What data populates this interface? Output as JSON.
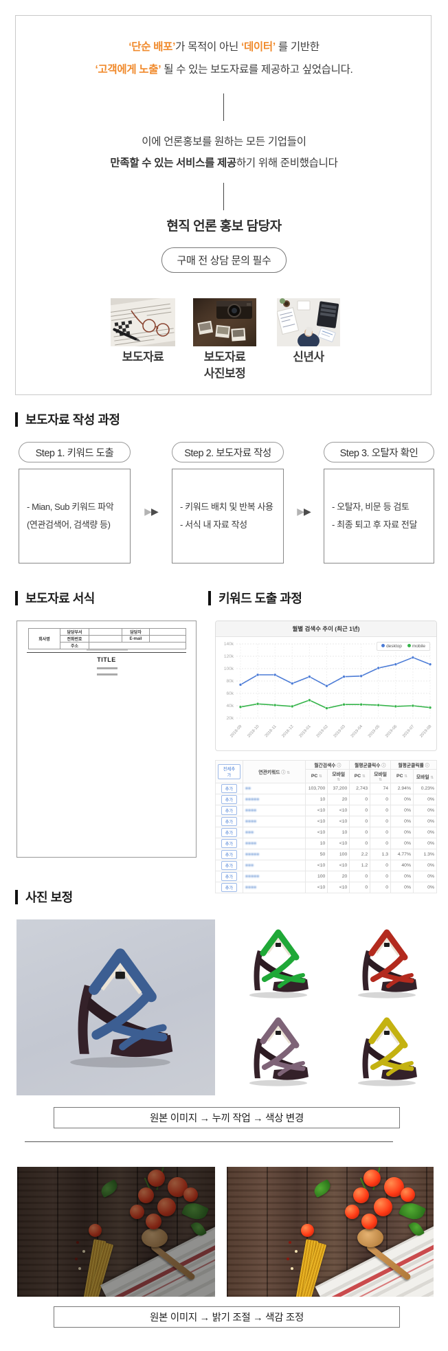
{
  "intro": {
    "line1": {
      "hl1": "‘단순 배포’",
      "t1": "가 목적이 아닌 ",
      "hl2": "‘데이터’",
      "t2": " 를 기반한"
    },
    "line2": {
      "hl1": "‘고객에게 노출’",
      "t1": " 될 수 있는 보도자료를 제공하고 싶었습니다."
    },
    "line3": "이에  언론홍보를 원하는 모든 기업들이",
    "line4": {
      "bold": "만족할 수 있는 서비스를 제공",
      "rest": "하기 위해 준비했습니다"
    },
    "role": "현직 언론 홍보 담당자",
    "pill": "구매 전 상담 문의 필수",
    "thumbs": [
      {
        "label": "보도자료",
        "label2": ""
      },
      {
        "label": "보도자료",
        "label2": "사진보정"
      },
      {
        "label": "신년사",
        "label2": ""
      }
    ]
  },
  "process": {
    "heading": "보도자료 작성 과정",
    "steps": [
      {
        "pill": "Step 1. 키워드 도출",
        "lines": [
          "- Mian, Sub 키워드 파악",
          "(연관검색어, 검색량 등)"
        ]
      },
      {
        "pill": "Step 2. 보도자료 작성",
        "lines": [
          "- 키워드 배치 및 반복 사용",
          "- 서식 내 자료 작성"
        ]
      },
      {
        "pill": "Step 3. 오탈자 확인",
        "lines": [
          "- 오탈자, 비문 등 검토",
          "- 최종 퇴고 후 자료 전달"
        ]
      }
    ]
  },
  "format_section": {
    "heading": "보도자료 서식",
    "form": {
      "company": "회사명",
      "dept": "담당부서",
      "manager": "담당자",
      "phone": "전화번호",
      "email": "E-mail",
      "address": "주소",
      "title": "TITLE"
    }
  },
  "keyword_section": {
    "heading": "키워드 도출 과정",
    "chart_data": {
      "type": "line",
      "title": "월별 검색수 추이 (최근 1년)",
      "x": [
        "2018-09",
        "2018-10",
        "2018-11",
        "2018-12",
        "2019-01",
        "2019-02",
        "2019-03",
        "2019-04",
        "2019-05",
        "2019-06",
        "2019-07",
        "2019-08"
      ],
      "series": [
        {
          "name": "desktop",
          "color": "#4b7bd6",
          "values": [
            74000,
            90000,
            90000,
            76000,
            87000,
            72000,
            87000,
            88000,
            101000,
            107000,
            118000,
            107000
          ]
        },
        {
          "name": "mobile",
          "color": "#35b44a",
          "values": [
            38000,
            43000,
            41000,
            39000,
            49000,
            36000,
            42000,
            42000,
            41000,
            39000,
            40000,
            37000
          ]
        }
      ],
      "ylim": [
        20000,
        140000
      ],
      "yticks": [
        "140k",
        "120k",
        "100k",
        "80k",
        "60k",
        "40k",
        "20k"
      ],
      "legend_position": "top-right",
      "grid": true
    },
    "table": {
      "add_all_label": "전체추가",
      "add_label": "추가",
      "col_keyword": "연관키워드",
      "group_headers": [
        "월간검색수",
        "월평균클릭수",
        "월평균클릭률"
      ],
      "sub_pc": "PC",
      "sub_mobile": "모바일",
      "info_icon": "ⓘ",
      "sort_icon": "⇅",
      "rows": [
        {
          "keyword": "●●",
          "values": [
            "103,700",
            "37,200",
            "2,743",
            "74",
            "2.94%",
            "0.23%"
          ]
        },
        {
          "keyword": "●●●●●",
          "values": [
            "10",
            "20",
            "0",
            "0",
            "0%",
            "0%"
          ]
        },
        {
          "keyword": "●●●●",
          "values": [
            "<10",
            "<10",
            "0",
            "0",
            "0%",
            "0%"
          ]
        },
        {
          "keyword": "●●●●",
          "values": [
            "<10",
            "<10",
            "0",
            "0",
            "0%",
            "0%"
          ]
        },
        {
          "keyword": "●●●",
          "values": [
            "<10",
            "10",
            "0",
            "0",
            "0%",
            "0%"
          ]
        },
        {
          "keyword": "●●●●",
          "values": [
            "10",
            "<10",
            "0",
            "0",
            "0%",
            "0%"
          ]
        },
        {
          "keyword": "●●●●●",
          "values": [
            "50",
            "100",
            "2.2",
            "1.3",
            "4.77%",
            "1.3%"
          ]
        },
        {
          "keyword": "●●●",
          "values": [
            "<10",
            "<10",
            "1.2",
            "0",
            "40%",
            "0%"
          ]
        },
        {
          "keyword": "●●●●●",
          "values": [
            "100",
            "20",
            "0",
            "0",
            "0%",
            "0%"
          ]
        },
        {
          "keyword": "●●●●",
          "values": [
            "<10",
            "<10",
            "0",
            "0",
            "0%",
            "0%"
          ]
        }
      ]
    }
  },
  "retouch_section": {
    "heading": "사진 보정",
    "caption1": "원본 이미지  → 누끼 작업 → 색상 변경",
    "caption2": "원본 이미지  → 밝기 조절 → 색감 조정",
    "shoe_colors": {
      "original": "#3c5e92",
      "green": "#1fa837",
      "red": "#b32a1e",
      "purple": "#7e6377",
      "yellow": "#c4b211"
    }
  },
  "colors": {
    "accent_orange": "#f08a2c",
    "line_desktop": "#4b7bd6",
    "line_mobile": "#35b44a",
    "link_blue": "#5b8bd0"
  }
}
